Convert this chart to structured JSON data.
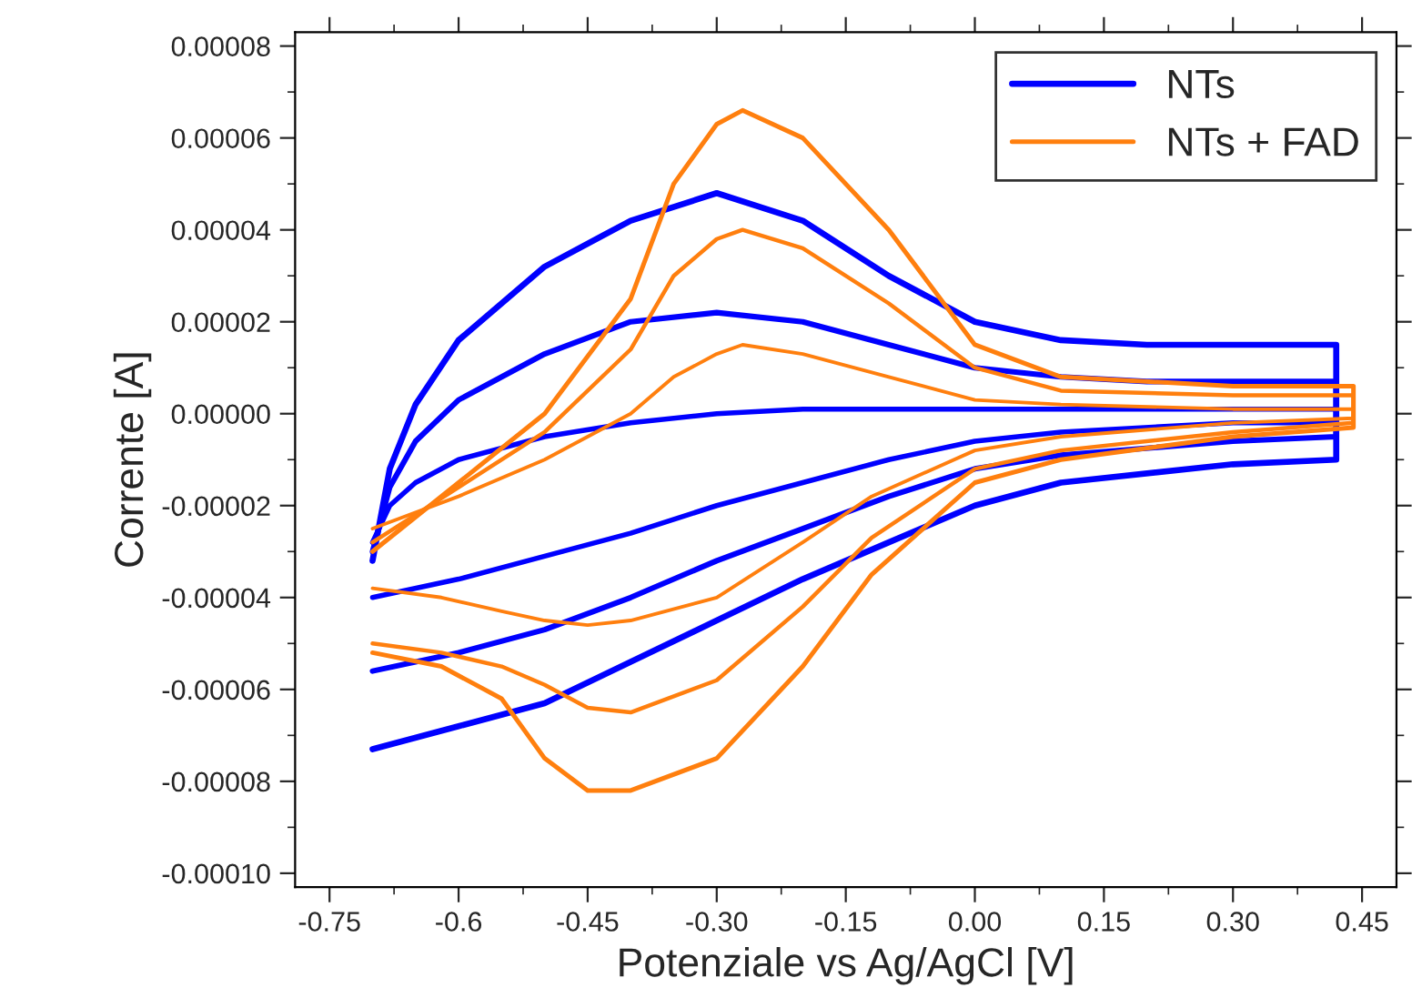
{
  "chart_data": {
    "type": "line",
    "xlabel": "Potenziale vs Ag/AgCl [V]",
    "ylabel": "Corrente [A]",
    "xlim": [
      -0.79,
      0.49
    ],
    "ylim": [
      -0.000103,
      8.3e-05
    ],
    "xticks": [
      -0.75,
      -0.6,
      -0.45,
      {
        "value": -0.3,
        "label": "-0.30"
      },
      -0.15,
      {
        "value": 0,
        "label": "0.00"
      },
      0.15,
      {
        "value": 0.3,
        "label": "0.30"
      },
      0.45
    ],
    "yticks": [
      {
        "value": -0.0001,
        "label": "-0.00010"
      },
      {
        "value": -8e-05,
        "label": "-0.00008"
      },
      {
        "value": -6e-05,
        "label": "-0.00006"
      },
      {
        "value": -4e-05,
        "label": "-0.00004"
      },
      {
        "value": -2e-05,
        "label": "-0.00002"
      },
      {
        "value": 0,
        "label": "0.00000"
      },
      {
        "value": 2e-05,
        "label": "0.00002"
      },
      {
        "value": 4e-05,
        "label": "0.00004"
      },
      {
        "value": 6e-05,
        "label": "0.00006"
      },
      {
        "value": 8e-05,
        "label": "0.00008"
      }
    ],
    "grid": false,
    "legend": "top right",
    "marker": "none",
    "line_style": "solid",
    "series": [
      {
        "name": "NTs",
        "color": "#0000ff",
        "x": [
          -0.7,
          -0.68,
          -0.65,
          -0.6,
          -0.5,
          -0.4,
          -0.3,
          -0.2,
          -0.1,
          0.0,
          0.1,
          0.2,
          0.42,
          0.42,
          0.3,
          0.1,
          0.0,
          -0.1,
          -0.2,
          -0.3,
          -0.4,
          -0.5,
          -0.6,
          -0.7
        ],
        "values": [
          -3.2e-05,
          -1.2e-05,
          2e-06,
          1.6e-05,
          3.2e-05,
          4.2e-05,
          4.8e-05,
          4.2e-05,
          3e-05,
          2e-05,
          1.6e-05,
          1.5e-05,
          1.5e-05,
          -1e-05,
          -1.1e-05,
          -1.5e-05,
          -2e-05,
          -2.8e-05,
          -3.6e-05,
          -4.5e-05,
          -5.4e-05,
          -6.3e-05,
          -6.8e-05,
          -7.3e-05
        ]
      },
      {
        "color": "#0000ff",
        "x": [
          -0.7,
          -0.68,
          -0.65,
          -0.6,
          -0.5,
          -0.4,
          -0.3,
          -0.2,
          -0.1,
          0.0,
          0.1,
          0.2,
          0.42,
          0.42,
          0.3,
          0.1,
          0.0,
          -0.1,
          -0.2,
          -0.3,
          -0.4,
          -0.5,
          -0.6,
          -0.7
        ],
        "values": [
          -3e-05,
          -1.6e-05,
          -6e-06,
          3e-06,
          1.3e-05,
          2e-05,
          2.2e-05,
          2e-05,
          1.5e-05,
          1e-05,
          8e-06,
          7e-06,
          7e-06,
          -5e-06,
          -6e-06,
          -9e-06,
          -1.2e-05,
          -1.8e-05,
          -2.5e-05,
          -3.2e-05,
          -4e-05,
          -4.7e-05,
          -5.2e-05,
          -5.6e-05
        ]
      },
      {
        "color": "#0000ff",
        "x": [
          -0.7,
          -0.68,
          -0.65,
          -0.6,
          -0.5,
          -0.4,
          -0.3,
          -0.2,
          -0.1,
          0.0,
          0.1,
          0.2,
          0.42,
          0.42,
          0.3,
          0.1,
          0.0,
          -0.1,
          -0.2,
          -0.3,
          -0.4,
          -0.5,
          -0.6,
          -0.7
        ],
        "values": [
          -2.8e-05,
          -2e-05,
          -1.5e-05,
          -1e-05,
          -5e-06,
          -2e-06,
          0.0,
          1e-06,
          1e-06,
          1e-06,
          1e-06,
          1e-06,
          1e-06,
          -2e-06,
          -2e-06,
          -4e-06,
          -6e-06,
          -1e-05,
          -1.5e-05,
          -2e-05,
          -2.6e-05,
          -3.1e-05,
          -3.6e-05,
          -4e-05
        ]
      },
      {
        "name": "NTs + FAD",
        "color": "#ff7f0e",
        "x": [
          -0.7,
          -0.6,
          -0.5,
          -0.4,
          -0.35,
          -0.3,
          -0.27,
          -0.2,
          -0.1,
          0.0,
          0.1,
          0.3,
          0.44,
          0.44,
          0.3,
          0.1,
          0.0,
          -0.12,
          -0.2,
          -0.3,
          -0.4,
          -0.45,
          -0.5,
          -0.55,
          -0.62,
          -0.7
        ],
        "values": [
          -3e-05,
          -1.5e-05,
          0.0,
          2.5e-05,
          5e-05,
          6.3e-05,
          6.6e-05,
          6e-05,
          4e-05,
          1.5e-05,
          8e-06,
          6e-06,
          6e-06,
          -3e-06,
          -5e-06,
          -1e-05,
          -1.5e-05,
          -3.5e-05,
          -5.5e-05,
          -7.5e-05,
          -8.2e-05,
          -8.2e-05,
          -7.5e-05,
          -6.2e-05,
          -5.5e-05,
          -5.2e-05
        ]
      },
      {
        "color": "#ff7f0e",
        "x": [
          -0.7,
          -0.6,
          -0.5,
          -0.4,
          -0.35,
          -0.3,
          -0.27,
          -0.2,
          -0.1,
          0.0,
          0.1,
          0.3,
          0.44,
          0.44,
          0.3,
          0.1,
          0.0,
          -0.12,
          -0.2,
          -0.3,
          -0.4,
          -0.45,
          -0.5,
          -0.55,
          -0.62,
          -0.7
        ],
        "values": [
          -2.8e-05,
          -1.6e-05,
          -4e-06,
          1.4e-05,
          3e-05,
          3.8e-05,
          4e-05,
          3.6e-05,
          2.4e-05,
          1e-05,
          5e-06,
          4e-06,
          4e-06,
          -2e-06,
          -4e-06,
          -8e-06,
          -1.2e-05,
          -2.7e-05,
          -4.2e-05,
          -5.8e-05,
          -6.5e-05,
          -6.4e-05,
          -5.9e-05,
          -5.5e-05,
          -5.2e-05,
          -5e-05
        ]
      },
      {
        "color": "#ff7f0e",
        "x": [
          -0.7,
          -0.6,
          -0.5,
          -0.4,
          -0.35,
          -0.3,
          -0.27,
          -0.2,
          -0.1,
          0.0,
          0.1,
          0.3,
          0.44,
          0.44,
          0.3,
          0.1,
          0.0,
          -0.12,
          -0.2,
          -0.3,
          -0.4,
          -0.45,
          -0.5,
          -0.55,
          -0.62,
          -0.7
        ],
        "values": [
          -2.5e-05,
          -1.8e-05,
          -1e-05,
          0.0,
          8e-06,
          1.3e-05,
          1.5e-05,
          1.3e-05,
          8e-06,
          3e-06,
          2e-06,
          1e-06,
          1e-06,
          -1e-06,
          -2e-06,
          -5e-06,
          -8e-06,
          -1.8e-05,
          -2.8e-05,
          -4e-05,
          -4.5e-05,
          -4.6e-05,
          -4.5e-05,
          -4.3e-05,
          -4e-05,
          -3.8e-05
        ]
      }
    ]
  }
}
